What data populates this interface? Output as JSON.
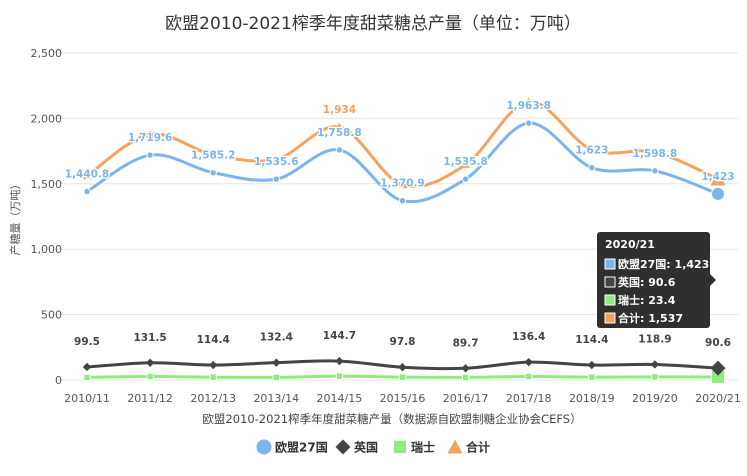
{
  "chart_data": {
    "type": "line",
    "title": "欧盟2010-2021榨季年度甜菜糖总产量（单位：万吨）",
    "xlabel": "欧盟2010-2021榨季年度甜菜糖产量（数据源自欧盟制糖企业协会CEFS）",
    "ylabel": "产糖量（万吨）",
    "ylim": [
      0,
      2500
    ],
    "yticks": [
      "0",
      "500",
      "1,000",
      "1,500",
      "2,000",
      "2,500"
    ],
    "grid": true,
    "legend_position": "bottom",
    "categories": [
      "2010/11",
      "2011/12",
      "2012/13",
      "2013/14",
      "2014/15",
      "2015/16",
      "2016/17",
      "2017/18",
      "2018/19",
      "2019/20",
      "2020/21"
    ],
    "series": [
      {
        "name": "欧盟27国",
        "color": "#7cb5ec",
        "marker": "circle",
        "values": [
          1440.8,
          1719.6,
          1585.2,
          1535.6,
          1758.8,
          1370.9,
          1535.8,
          1963.8,
          1623,
          1598.8,
          1423
        ],
        "labels": [
          "1,440.8",
          "1,719.6",
          "1,585.2",
          "1,535.6",
          "1,758.8",
          "1,370.9",
          "1,535.8",
          "1,963.8",
          "1,623",
          "1,598.8",
          "1,423"
        ]
      },
      {
        "name": "英国",
        "color": "#434348",
        "marker": "diamond",
        "values": [
          99.5,
          131.5,
          114.4,
          132.4,
          144.7,
          97.8,
          89.7,
          136.4,
          114.4,
          118.9,
          90.6
        ],
        "labels": [
          "99.5",
          "131.5",
          "114.4",
          "132.4",
          "144.7",
          "97.8",
          "89.7",
          "136.4",
          "114.4",
          "118.9",
          "90.6"
        ]
      },
      {
        "name": "瑞士",
        "color": "#90ed7d",
        "marker": "square",
        "values": [
          20,
          27,
          22,
          20,
          30,
          22,
          20,
          27,
          22,
          24,
          23.4
        ],
        "labels": null
      },
      {
        "name": "合计",
        "color": "#f7a35c",
        "marker": "triangle",
        "values": [
          1560,
          1878,
          1722,
          1688,
          1934,
          1491,
          1646,
          2127,
          1760,
          1742,
          1537
        ],
        "labels": [
          null,
          null,
          null,
          null,
          "1,934",
          null,
          null,
          null,
          null,
          null,
          null
        ]
      }
    ]
  },
  "tooltip": {
    "header": "2020/21",
    "rows": [
      {
        "text": "欧盟27国: 1,423",
        "color": "#7cb5ec"
      },
      {
        "text": "英国: 90.6",
        "color": "#434348"
      },
      {
        "text": "瑞士: 23.4",
        "color": "#90ed7d"
      },
      {
        "text": "合计: 1,537",
        "color": "#f7a35c"
      }
    ]
  }
}
